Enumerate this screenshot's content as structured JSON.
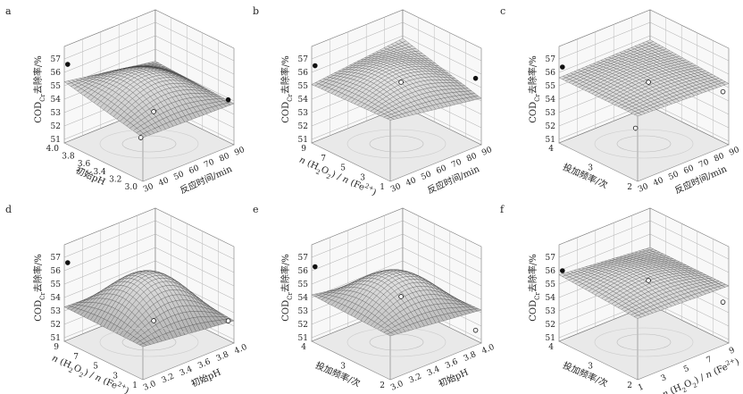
{
  "chart_data": [
    {
      "type": "surface",
      "panel": "a",
      "zlabel": "COD_Cr去除率/%",
      "zticks": [
        "51",
        "52",
        "53",
        "54",
        "55",
        "56",
        "57"
      ],
      "zlim": [
        51,
        57
      ],
      "x1label": "初始pH",
      "x1ticks": [
        "4.0",
        "3.8",
        "3.6",
        "3.4",
        "3.2",
        "3.0"
      ],
      "x2label": "反应时间/min",
      "x2ticks": [
        "30",
        "40",
        "50",
        "60",
        "70",
        "80",
        "90"
      ],
      "surface_corners": {
        "back_left": 55.3,
        "back_right": 54.1,
        "front_left": 54.0,
        "front_right": 53.8
      },
      "peak": 55.9,
      "design_points": [
        56.6,
        53.0,
        54.0,
        53.8
      ]
    },
    {
      "type": "surface",
      "panel": "b",
      "zlabel": "COD_Cr去除率/%",
      "zticks": [
        "51",
        "52",
        "53",
        "54",
        "55",
        "56",
        "57"
      ],
      "zlim": [
        51,
        57
      ],
      "x1label": "n (H2O2) / n (Fe2+)",
      "x1ticks": [
        "9",
        "7",
        "5",
        "3",
        "1"
      ],
      "x2label": "反应时间/min",
      "x2ticks": [
        "30",
        "40",
        "50",
        "60",
        "70",
        "80",
        "90"
      ],
      "surface_corners": {
        "back_left": 55.1,
        "back_right": 55.8,
        "front_left": 55.3,
        "front_right": 54.2
      },
      "peak": 56.2,
      "design_points": [
        56.5,
        55.2,
        55.6
      ]
    },
    {
      "type": "surface",
      "panel": "c",
      "zlabel": "COD_Cr去除率/%",
      "zticks": [
        "51",
        "52",
        "53",
        "54",
        "55",
        "56",
        "57"
      ],
      "zlim": [
        51,
        57
      ],
      "x1label": "投加频率/次",
      "x1ticks": [
        "4",
        "3",
        "2"
      ],
      "x2label": "反应时间/min",
      "x2ticks": [
        "30",
        "40",
        "50",
        "60",
        "70",
        "80",
        "90"
      ],
      "surface_corners": {
        "back_left": 55.6,
        "back_right": 55.7,
        "front_left": 55.6,
        "front_right": 55.3
      },
      "peak": 55.9,
      "design_points": [
        56.4,
        55.2,
        54.6,
        54.5
      ]
    },
    {
      "type": "surface",
      "panel": "d",
      "zlabel": "COD_Cr去除率/%",
      "zticks": [
        "51",
        "52",
        "53",
        "54",
        "55",
        "56",
        "57"
      ],
      "zlim": [
        51,
        57
      ],
      "x1label": "n (H2O2) / n (Fe2+)",
      "x1ticks": [
        "9",
        "7",
        "5",
        "3",
        "1"
      ],
      "x2label": "初始pH",
      "x2ticks": [
        "3.0",
        "3.2",
        "3.4",
        "3.6",
        "3.8",
        "4.0"
      ],
      "surface_corners": {
        "back_left": 53.3,
        "back_right": 53.0,
        "front_left": 53.2,
        "front_right": 52.4
      },
      "peak": 55.8,
      "design_points": [
        56.6,
        52.2,
        52.3
      ]
    },
    {
      "type": "surface",
      "panel": "e",
      "zlabel": "COD_Cr去除率/%",
      "zticks": [
        "51",
        "52",
        "53",
        "54",
        "55",
        "56",
        "57"
      ],
      "zlim": [
        51,
        57
      ],
      "x1label": "投加频率/次",
      "x1ticks": [
        "4",
        "3",
        "2"
      ],
      "x2label": "初始pH",
      "x2ticks": [
        "3.0",
        "3.2",
        "3.4",
        "3.6",
        "3.8",
        "4.0"
      ],
      "surface_corners": {
        "back_left": 54.2,
        "back_right": 53.0,
        "front_left": 54.0,
        "front_right": 53.2
      },
      "peak": 55.9,
      "design_points": [
        56.3,
        54.0,
        51.6
      ]
    },
    {
      "type": "surface",
      "panel": "f",
      "zlabel": "COD_Cr去除率/%",
      "zticks": [
        "51",
        "52",
        "53",
        "54",
        "55",
        "56",
        "57"
      ],
      "zlim": [
        51,
        57
      ],
      "x1label": "投加频率/次",
      "x1ticks": [
        "4",
        "3",
        "2"
      ],
      "x2label": "n (H2O2) / n (Fe2+)",
      "x2ticks": [
        "1",
        "3",
        "5",
        "7",
        "9"
      ],
      "surface_corners": {
        "back_left": 55.7,
        "back_right": 55.0,
        "front_left": 55.3,
        "front_right": 55.0
      },
      "peak": 55.9,
      "design_points": [
        56.0,
        55.2,
        53.7
      ]
    }
  ]
}
